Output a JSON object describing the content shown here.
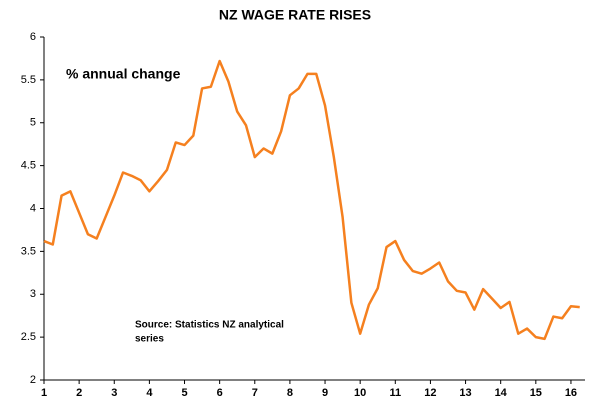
{
  "chart_data": {
    "type": "line",
    "title": "NZ WAGE RATE RISES",
    "annotation": "% annual change",
    "source": [
      "Source: Statistics NZ analytical",
      "series"
    ],
    "x": [
      1,
      1.25,
      1.5,
      1.75,
      2,
      2.25,
      2.5,
      2.75,
      3,
      3.25,
      3.5,
      3.75,
      4,
      4.25,
      4.5,
      4.75,
      5,
      5.25,
      5.5,
      5.75,
      6,
      6.25,
      6.5,
      6.75,
      7,
      7.25,
      7.5,
      7.75,
      8,
      8.25,
      8.5,
      8.75,
      9,
      9.25,
      9.5,
      9.75,
      10,
      10.25,
      10.5,
      10.75,
      11,
      11.25,
      11.5,
      11.75,
      12,
      12.25,
      12.5,
      12.75,
      13,
      13.25,
      13.5,
      13.75,
      14,
      14.25,
      14.5,
      14.75,
      15,
      15.25,
      15.5,
      15.75,
      16,
      16.25
    ],
    "values": [
      3.62,
      3.58,
      4.15,
      4.2,
      3.95,
      3.7,
      3.65,
      3.9,
      4.15,
      4.42,
      4.38,
      4.33,
      4.2,
      4.32,
      4.45,
      4.77,
      4.74,
      4.85,
      5.4,
      5.42,
      5.72,
      5.48,
      5.13,
      4.97,
      4.6,
      4.7,
      4.64,
      4.9,
      5.32,
      5.4,
      5.57,
      5.57,
      5.2,
      4.6,
      3.9,
      2.9,
      2.54,
      2.88,
      3.07,
      3.55,
      3.62,
      3.4,
      3.27,
      3.24,
      3.3,
      3.37,
      3.15,
      3.04,
      3.02,
      2.82,
      3.06,
      2.95,
      2.84,
      2.91,
      2.54,
      2.6,
      2.5,
      2.48,
      2.74,
      2.72,
      2.86,
      2.85
    ],
    "color": "#f5801f",
    "xlim": [
      1,
      16.4
    ],
    "xticks": [
      1,
      2,
      3,
      4,
      5,
      6,
      7,
      8,
      9,
      10,
      11,
      12,
      13,
      14,
      15,
      16
    ],
    "ylim": [
      2,
      6
    ],
    "yticks": [
      2,
      2.5,
      3,
      3.5,
      4,
      4.5,
      5,
      5.5,
      6
    ],
    "grid": false
  }
}
